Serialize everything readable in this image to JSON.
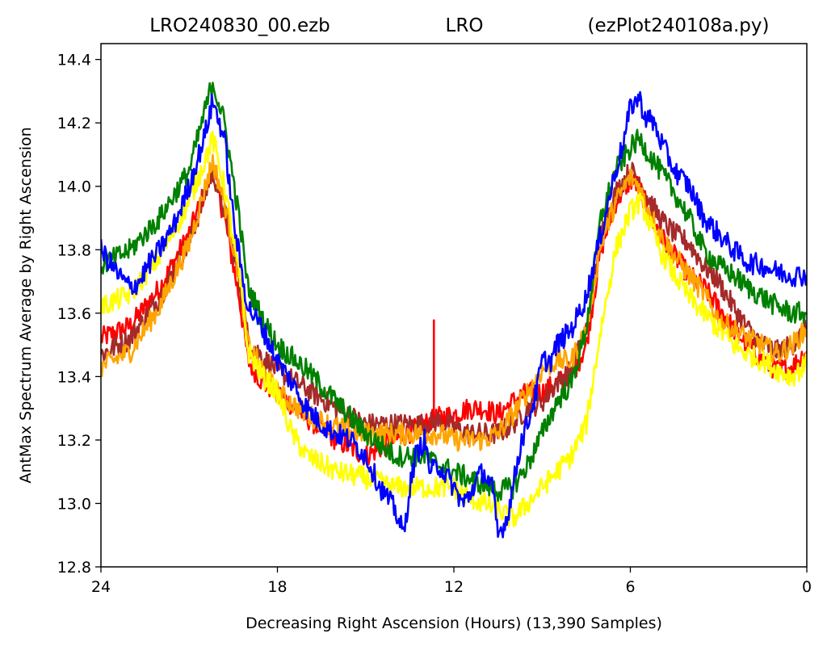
{
  "chart_data": {
    "type": "line",
    "title_left": "LRO240830_00.ezb",
    "title_center": "LRO",
    "title_right": "(ezPlot240108a.py)",
    "xlabel": "Decreasing Right Ascension (Hours) (13,390 Samples)",
    "ylabel": "AntMax Spectrum Average by Right Ascension",
    "xlim": [
      24,
      0
    ],
    "ylim": [
      12.8,
      14.45
    ],
    "x_ticks": [
      24,
      18,
      12,
      6,
      0
    ],
    "x_tick_labels": [
      "24",
      "18",
      "12",
      "6",
      "0"
    ],
    "y_ticks": [
      12.8,
      13.0,
      13.2,
      13.4,
      13.6,
      13.8,
      14.0,
      14.2,
      14.4
    ],
    "y_tick_labels": [
      "12.8",
      "13.0",
      "13.2",
      "13.4",
      "13.6",
      "13.8",
      "14.0",
      "14.2",
      "14.4"
    ],
    "grid": false,
    "legend": "none",
    "series": [
      {
        "color": "#ff0000",
        "x": [
          24,
          23,
          22,
          21,
          20.2,
          19.8,
          19.3,
          19,
          18.5,
          18,
          17,
          16,
          15,
          14,
          13,
          12.5,
          12,
          11.5,
          11,
          10.5,
          10,
          9.5,
          9,
          8.5,
          8,
          7.5,
          7,
          6.5,
          6,
          5.7,
          5.5,
          5,
          4.5,
          4,
          3.5,
          3,
          2.5,
          2,
          1.5,
          1,
          0.5,
          0
        ],
        "y": [
          13.52,
          13.56,
          13.68,
          13.85,
          14.05,
          13.9,
          13.65,
          13.45,
          13.38,
          13.35,
          13.27,
          13.2,
          13.15,
          13.2,
          13.25,
          13.27,
          13.28,
          13.3,
          13.3,
          13.28,
          13.32,
          13.35,
          13.35,
          13.38,
          13.4,
          13.5,
          13.8,
          13.95,
          14.02,
          14.0,
          13.95,
          13.85,
          13.78,
          13.72,
          13.68,
          13.62,
          13.55,
          13.5,
          13.45,
          13.42,
          13.43,
          13.48
        ]
      },
      {
        "color": "#a52a2a",
        "x": [
          24,
          23,
          22,
          21,
          20.2,
          19.8,
          19.3,
          19,
          18.5,
          18,
          17,
          16,
          15,
          14,
          13,
          12.5,
          12,
          11.5,
          11,
          10.5,
          10,
          9.5,
          9,
          8.5,
          8,
          7.5,
          7,
          6.5,
          6,
          5.7,
          5.5,
          5,
          4.5,
          4,
          3.5,
          3,
          2.5,
          2,
          1.5,
          1,
          0.5,
          0
        ],
        "y": [
          13.47,
          13.52,
          13.65,
          13.82,
          14.05,
          13.92,
          13.7,
          13.52,
          13.46,
          13.42,
          13.36,
          13.3,
          13.25,
          13.25,
          13.25,
          13.26,
          13.24,
          13.22,
          13.22,
          13.22,
          13.25,
          13.3,
          13.32,
          13.38,
          13.42,
          13.55,
          13.85,
          13.98,
          14.05,
          14.02,
          13.98,
          13.9,
          13.85,
          13.82,
          13.75,
          13.7,
          13.62,
          13.55,
          13.5,
          13.48,
          13.5,
          13.55
        ]
      },
      {
        "color": "#ffa500",
        "x": [
          24,
          23,
          22,
          21,
          20.2,
          19.8,
          19.3,
          19,
          18.5,
          18,
          17,
          16,
          15,
          14,
          13,
          12.5,
          12,
          11.5,
          11,
          10.5,
          10,
          9.5,
          9,
          8.5,
          8,
          7.5,
          7,
          6.5,
          6,
          5.7,
          5.5,
          5,
          4.5,
          4,
          3.5,
          3,
          2.5,
          2,
          1.5,
          1,
          0.5,
          0
        ],
        "y": [
          13.43,
          13.48,
          13.62,
          13.82,
          14.08,
          13.95,
          13.72,
          13.5,
          13.42,
          13.35,
          13.28,
          13.24,
          13.22,
          13.22,
          13.22,
          13.22,
          13.2,
          13.2,
          13.2,
          13.22,
          13.28,
          13.35,
          13.42,
          13.45,
          13.45,
          13.55,
          13.82,
          13.95,
          14.03,
          14.0,
          13.95,
          13.85,
          13.78,
          13.72,
          13.66,
          13.58,
          13.55,
          13.52,
          13.5,
          13.47,
          13.5,
          13.55
        ]
      },
      {
        "color": "#ffff00",
        "x": [
          24,
          23,
          22,
          21,
          20.2,
          19.8,
          19.3,
          19,
          18.5,
          18,
          17.5,
          17,
          16,
          15,
          14,
          13,
          12.5,
          12,
          11.5,
          11,
          10.5,
          10,
          9.5,
          9,
          8.5,
          8,
          7.5,
          7,
          6.5,
          6,
          5.7,
          5.5,
          5,
          4.5,
          4,
          3.5,
          3,
          2.5,
          2,
          1.5,
          1,
          0.5,
          0
        ],
        "y": [
          13.62,
          13.66,
          13.78,
          13.95,
          14.15,
          14.0,
          13.72,
          13.48,
          13.4,
          13.35,
          13.22,
          13.15,
          13.1,
          13.08,
          13.05,
          13.05,
          13.05,
          13.05,
          13.02,
          13.0,
          12.98,
          12.95,
          13.0,
          13.05,
          13.1,
          13.15,
          13.25,
          13.55,
          13.8,
          13.92,
          13.95,
          13.92,
          13.8,
          13.72,
          13.65,
          13.6,
          13.55,
          13.5,
          13.47,
          13.45,
          13.42,
          13.4,
          13.44
        ]
      },
      {
        "color": "#008000",
        "x": [
          24,
          23,
          22,
          21,
          20.2,
          19.8,
          19.3,
          19,
          18.5,
          18,
          17,
          16,
          15,
          14,
          13,
          12.5,
          12,
          11.5,
          11,
          10.5,
          10,
          9.5,
          9,
          8.5,
          8,
          7.5,
          7,
          6.5,
          6,
          5.7,
          5.5,
          5,
          4.5,
          4,
          3.5,
          3,
          2.5,
          2,
          1.5,
          1,
          0.5,
          0
        ],
        "y": [
          13.75,
          13.8,
          13.9,
          14.05,
          14.33,
          14.2,
          13.9,
          13.68,
          13.58,
          13.5,
          13.42,
          13.32,
          13.22,
          13.15,
          13.15,
          13.12,
          13.1,
          13.08,
          13.06,
          13.04,
          13.05,
          13.12,
          13.22,
          13.32,
          13.38,
          13.55,
          13.9,
          14.05,
          14.12,
          14.15,
          14.12,
          14.05,
          13.98,
          13.9,
          13.8,
          13.75,
          13.72,
          13.68,
          13.65,
          13.62,
          13.6,
          13.6
        ]
      },
      {
        "color": "#0000ff",
        "x": [
          24,
          23.7,
          23.4,
          23,
          22.7,
          22.4,
          22,
          21.5,
          21,
          20.5,
          20.2,
          19.8,
          19.5,
          19.2,
          19,
          18.5,
          18,
          17.5,
          17,
          16.5,
          16,
          15.5,
          15,
          14.5,
          14,
          13.7,
          13.5,
          13.3,
          13,
          12.8,
          12.5,
          12.2,
          12,
          11.7,
          11.5,
          11.2,
          11,
          10.7,
          10.5,
          10.2,
          10,
          9.7,
          9.5,
          9.2,
          9,
          8.7,
          8.5,
          8,
          7.5,
          7,
          6.5,
          6.2,
          6,
          5.7,
          5.5,
          5.2,
          5,
          4.5,
          4,
          3.5,
          3,
          2.5,
          2,
          1.5,
          1,
          0.5,
          0
        ],
        "y": [
          13.8,
          13.76,
          13.72,
          13.68,
          13.7,
          13.75,
          13.8,
          13.88,
          14.0,
          14.15,
          14.27,
          14.15,
          13.9,
          13.72,
          13.62,
          13.55,
          13.45,
          13.38,
          13.3,
          13.25,
          13.22,
          13.2,
          13.15,
          13.05,
          12.98,
          12.9,
          13.05,
          13.15,
          13.2,
          13.1,
          13.12,
          13.08,
          13.05,
          13.0,
          13.02,
          13.08,
          13.1,
          13.05,
          12.9,
          12.95,
          13.05,
          13.2,
          13.25,
          13.35,
          13.45,
          13.45,
          13.5,
          13.55,
          13.65,
          13.85,
          14.05,
          14.15,
          14.25,
          14.28,
          14.22,
          14.2,
          14.15,
          14.05,
          14.0,
          13.9,
          13.85,
          13.8,
          13.76,
          13.75,
          13.73,
          13.72,
          13.72
        ]
      }
    ]
  }
}
